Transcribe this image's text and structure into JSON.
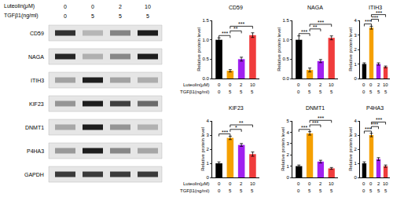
{
  "treatments": [
    {
      "label": "Luteolin(μM)",
      "values": [
        0,
        0,
        2,
        10
      ]
    },
    {
      "label": "TGFβ1(ng/ml)",
      "values": [
        0,
        5,
        5,
        5
      ]
    }
  ],
  "blot": {
    "proteins": [
      "CD59",
      "NAGA",
      "ITIH3",
      "KIF23",
      "DNMT1",
      "P4HA3",
      "GAPDH"
    ]
  },
  "chart_data": [
    {
      "type": "bar",
      "title": "CD59",
      "y_label": "Relative protein level",
      "values": [
        1.0,
        0.2,
        0.5,
        1.12
      ],
      "errors": [
        0.05,
        0.03,
        0.05,
        0.06
      ],
      "colors": [
        "#000000",
        "#f5a000",
        "#a020f0",
        "#f03c3c"
      ],
      "ylim": [
        0,
        1.5
      ],
      "yticks": [
        {
          "value": 0,
          "label": "0.0"
        },
        {
          "value": 0.5,
          "label": "0.5"
        },
        {
          "value": 1,
          "label": "1.0"
        },
        {
          "value": 1.5,
          "label": "1.5"
        }
      ],
      "significance": [
        {
          "from": 0,
          "to": 1,
          "label": "***"
        },
        {
          "from": 1,
          "to": 2,
          "label": "**"
        },
        {
          "from": 1,
          "to": 3,
          "label": "***"
        }
      ]
    },
    {
      "type": "bar",
      "title": "NAGA",
      "y_label": "Relative protein level",
      "values": [
        1.0,
        0.22,
        0.45,
        1.05
      ],
      "errors": [
        0.1,
        0.05,
        0.04,
        0.05
      ],
      "colors": [
        "#000000",
        "#f5a000",
        "#a020f0",
        "#f03c3c"
      ],
      "ylim": [
        0,
        1.5
      ],
      "yticks": [
        {
          "value": 0,
          "label": "0.0"
        },
        {
          "value": 0.5,
          "label": "0.5"
        },
        {
          "value": 1,
          "label": "1.0"
        },
        {
          "value": 1.5,
          "label": "1.5"
        }
      ],
      "significance": [
        {
          "from": 0,
          "to": 1,
          "label": "***"
        },
        {
          "from": 1,
          "to": 2,
          "label": "**"
        },
        {
          "from": 1,
          "to": 3,
          "label": "***"
        }
      ]
    },
    {
      "type": "bar",
      "title": "ITIH3",
      "y_label": "Relative protein level",
      "values": [
        1.0,
        3.5,
        1.0,
        0.8
      ],
      "errors": [
        0.08,
        0.1,
        0.08,
        0.06
      ],
      "colors": [
        "#000000",
        "#f5a000",
        "#a020f0",
        "#f03c3c"
      ],
      "ylim": [
        0,
        4
      ],
      "yticks": [
        0,
        1,
        2,
        3,
        4
      ],
      "significance": [
        {
          "from": 0,
          "to": 1,
          "label": "***"
        },
        {
          "from": 1,
          "to": 2,
          "label": "***"
        },
        {
          "from": 1,
          "to": 3,
          "label": "***"
        }
      ]
    },
    {
      "type": "bar",
      "title": "KIF23",
      "y_label": "Relative protein level",
      "values": [
        1.0,
        2.8,
        2.3,
        1.65
      ],
      "errors": [
        0.1,
        0.12,
        0.1,
        0.15
      ],
      "colors": [
        "#000000",
        "#f5a000",
        "#a020f0",
        "#f03c3c"
      ],
      "ylim": [
        0,
        4
      ],
      "yticks": [
        0,
        1,
        2,
        3,
        4
      ],
      "significance": [
        {
          "from": 0,
          "to": 1,
          "label": "***"
        },
        {
          "from": 1,
          "to": 2,
          "label": "*"
        },
        {
          "from": 1,
          "to": 3,
          "label": "**"
        }
      ]
    },
    {
      "type": "bar",
      "title": "DNMT1",
      "y_label": "Relative protein level",
      "values": [
        1.0,
        3.9,
        1.4,
        0.8
      ],
      "errors": [
        0.1,
        0.15,
        0.12,
        0.08
      ],
      "colors": [
        "#000000",
        "#f5a000",
        "#a020f0",
        "#f03c3c"
      ],
      "ylim": [
        0,
        5
      ],
      "yticks": [
        0,
        1,
        2,
        3,
        4,
        5
      ],
      "significance": [
        {
          "from": 0,
          "to": 1,
          "label": "***"
        },
        {
          "from": 1,
          "to": 2,
          "label": "***"
        },
        {
          "from": 1,
          "to": 3,
          "label": "***"
        }
      ]
    },
    {
      "type": "bar",
      "title": "P4HA3",
      "y_label": "Relative protein level",
      "values": [
        1.0,
        3.0,
        1.3,
        0.8
      ],
      "errors": [
        0.1,
        0.12,
        0.1,
        0.08
      ],
      "colors": [
        "#000000",
        "#f5a000",
        "#a020f0",
        "#f03c3c"
      ],
      "ylim": [
        0,
        4
      ],
      "yticks": [
        0,
        1,
        2,
        3,
        4
      ],
      "significance": [
        {
          "from": 0,
          "to": 1,
          "label": "***"
        },
        {
          "from": 1,
          "to": 2,
          "label": "***"
        },
        {
          "from": 1,
          "to": 3,
          "label": "***"
        }
      ]
    }
  ]
}
